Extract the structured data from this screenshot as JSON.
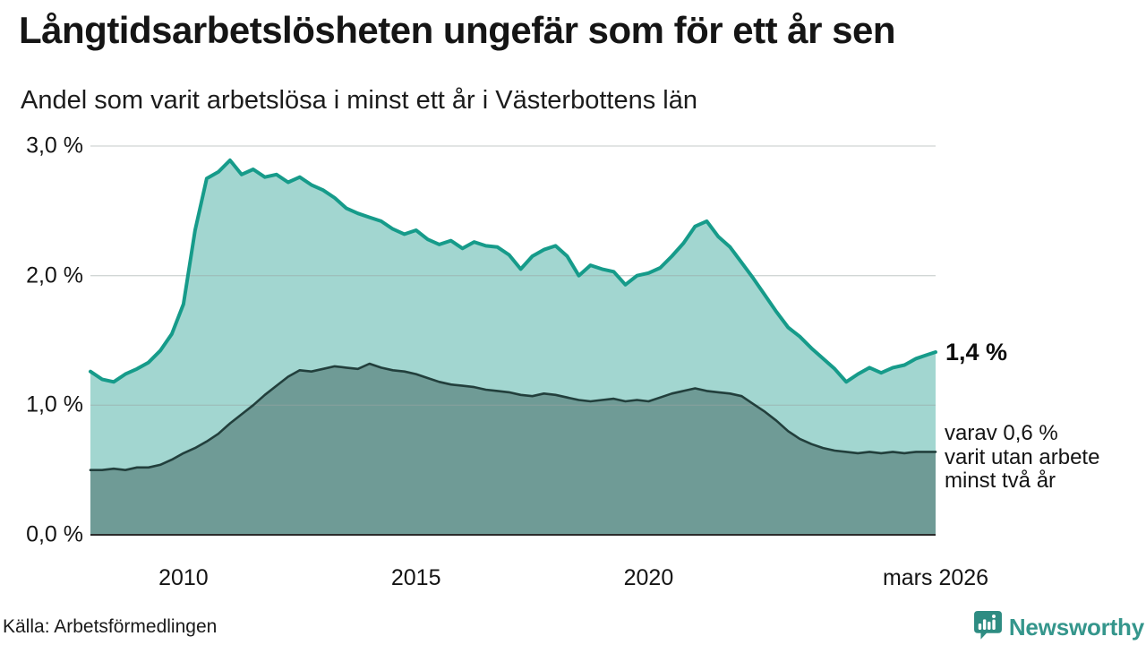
{
  "title": "Långtidsarbetslösheten ungefär som för ett år sen",
  "subtitle": "Andel som varit arbetslösa i minst ett år i Västerbottens län",
  "source": "Källa: Arbetsförmedlingen",
  "brand": {
    "name": "Newsworthy",
    "icon": "newsworthy-speech-bubble-bars-icon",
    "color": "#2e8c82"
  },
  "annotations": {
    "latest_total": "1,4 %",
    "breakdown": "varav 0,6 %\nvarit utan arbete\nminst två år"
  },
  "chart_data": {
    "type": "area",
    "title": "Långtidsarbetslösheten ungefär som för ett år sen",
    "xlabel": "",
    "ylabel": "",
    "xlim": [
      2008,
      2026.17
    ],
    "ylim": [
      0,
      3.0
    ],
    "grid": "horizontal",
    "legend_position": "none",
    "x": [
      2008,
      2008.25,
      2008.5,
      2008.75,
      2009,
      2009.25,
      2009.5,
      2009.75,
      2010,
      2010.25,
      2010.5,
      2010.75,
      2011,
      2011.25,
      2011.5,
      2011.75,
      2012,
      2012.25,
      2012.5,
      2012.75,
      2013,
      2013.25,
      2013.5,
      2013.75,
      2014,
      2014.25,
      2014.5,
      2014.75,
      2015,
      2015.25,
      2015.5,
      2015.75,
      2016,
      2016.25,
      2016.5,
      2016.75,
      2017,
      2017.25,
      2017.5,
      2017.75,
      2018,
      2018.25,
      2018.5,
      2018.75,
      2019,
      2019.25,
      2019.5,
      2019.75,
      2020,
      2020.25,
      2020.5,
      2020.75,
      2021,
      2021.25,
      2021.5,
      2021.75,
      2022,
      2022.25,
      2022.5,
      2022.75,
      2023,
      2023.25,
      2023.5,
      2023.75,
      2024,
      2024.25,
      2024.5,
      2024.75,
      2025,
      2025.25,
      2025.5,
      2025.75,
      2026,
      2026.17
    ],
    "series": [
      {
        "name": "Arbetslösa minst ett år",
        "color": "#169b8a",
        "fill": "#a2d6d0",
        "end_label": "1,4 %",
        "values": [
          1.26,
          1.2,
          1.18,
          1.24,
          1.28,
          1.33,
          1.42,
          1.55,
          1.78,
          2.35,
          2.75,
          2.8,
          2.89,
          2.78,
          2.82,
          2.76,
          2.78,
          2.72,
          2.76,
          2.7,
          2.66,
          2.6,
          2.52,
          2.48,
          2.45,
          2.42,
          2.36,
          2.32,
          2.35,
          2.28,
          2.24,
          2.27,
          2.21,
          2.26,
          2.23,
          2.22,
          2.16,
          2.05,
          2.15,
          2.2,
          2.23,
          2.15,
          2.0,
          2.08,
          2.05,
          2.03,
          1.93,
          2.0,
          2.02,
          2.06,
          2.15,
          2.25,
          2.38,
          2.42,
          2.3,
          2.22,
          2.1,
          1.98,
          1.85,
          1.72,
          1.6,
          1.53,
          1.44,
          1.36,
          1.28,
          1.18,
          1.24,
          1.29,
          1.25,
          1.29,
          1.31,
          1.36,
          1.39,
          1.41
        ]
      },
      {
        "name": "Arbetslösa minst två år",
        "color": "#223f3c",
        "fill": "#6f9b96",
        "end_label": "0,6 %",
        "values": [
          0.5,
          0.5,
          0.51,
          0.5,
          0.52,
          0.52,
          0.54,
          0.58,
          0.63,
          0.67,
          0.72,
          0.78,
          0.86,
          0.93,
          1.0,
          1.08,
          1.15,
          1.22,
          1.27,
          1.26,
          1.28,
          1.3,
          1.29,
          1.28,
          1.32,
          1.29,
          1.27,
          1.26,
          1.24,
          1.21,
          1.18,
          1.16,
          1.15,
          1.14,
          1.12,
          1.11,
          1.1,
          1.08,
          1.07,
          1.09,
          1.08,
          1.06,
          1.04,
          1.03,
          1.04,
          1.05,
          1.03,
          1.04,
          1.03,
          1.06,
          1.09,
          1.11,
          1.13,
          1.11,
          1.1,
          1.09,
          1.07,
          1.01,
          0.95,
          0.88,
          0.8,
          0.74,
          0.7,
          0.67,
          0.65,
          0.64,
          0.63,
          0.64,
          0.63,
          0.64,
          0.63,
          0.64,
          0.64,
          0.64
        ]
      }
    ],
    "yticks": [
      {
        "v": 3.0,
        "label": "3,0 %"
      },
      {
        "v": 2.0,
        "label": "2,0 %"
      },
      {
        "v": 1.0,
        "label": "1,0 %"
      },
      {
        "v": 0.0,
        "label": "0,0 %"
      }
    ],
    "xticks": [
      {
        "x": 2010,
        "label": "2010"
      },
      {
        "x": 2015,
        "label": "2015"
      },
      {
        "x": 2020,
        "label": "2020"
      },
      {
        "x": 2026.17,
        "label": "mars 2026"
      }
    ]
  }
}
